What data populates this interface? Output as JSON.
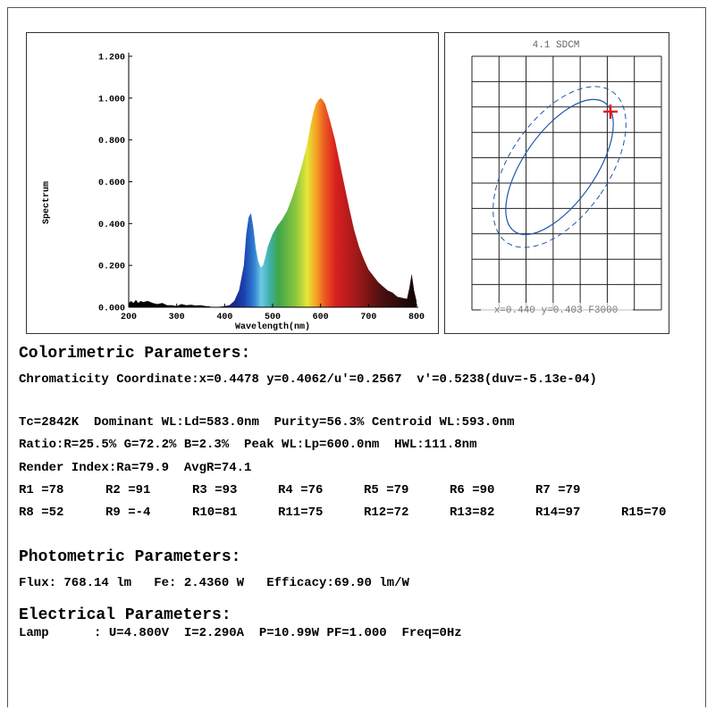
{
  "chart_data": [
    {
      "type": "area",
      "title": "",
      "xlabel": "Wavelength(nm)",
      "ylabel": "Spectrum",
      "xlim": [
        200,
        800
      ],
      "ylim": [
        0,
        1.2
      ],
      "x_ticks": [
        "200",
        "300",
        "400",
        "500",
        "600",
        "700",
        "800"
      ],
      "y_ticks": [
        "0.000",
        "0.200",
        "0.400",
        "0.600",
        "0.800",
        "1.000",
        "1.200"
      ],
      "x": [
        380,
        400,
        410,
        420,
        430,
        440,
        445,
        450,
        455,
        460,
        465,
        470,
        475,
        480,
        485,
        490,
        495,
        500,
        510,
        520,
        530,
        540,
        550,
        560,
        570,
        575,
        580,
        585,
        590,
        595,
        600,
        605,
        610,
        615,
        620,
        630,
        640,
        650,
        660,
        670,
        680,
        690,
        700,
        710,
        720,
        730,
        740,
        750,
        760,
        770,
        780,
        785,
        790,
        795,
        800
      ],
      "values": [
        0.0,
        0.005,
        0.01,
        0.03,
        0.08,
        0.2,
        0.35,
        0.43,
        0.45,
        0.38,
        0.28,
        0.22,
        0.19,
        0.2,
        0.24,
        0.29,
        0.32,
        0.35,
        0.39,
        0.42,
        0.46,
        0.52,
        0.59,
        0.67,
        0.76,
        0.82,
        0.88,
        0.93,
        0.97,
        0.99,
        1.0,
        0.99,
        0.97,
        0.93,
        0.89,
        0.8,
        0.69,
        0.58,
        0.47,
        0.37,
        0.29,
        0.23,
        0.18,
        0.15,
        0.12,
        0.1,
        0.08,
        0.07,
        0.05,
        0.045,
        0.04,
        0.09,
        0.16,
        0.08,
        0.03
      ],
      "noise_x": [
        200,
        205,
        210,
        215,
        220,
        225,
        230,
        240,
        250,
        260,
        270,
        280,
        290,
        300,
        310,
        320,
        330,
        340,
        350,
        360,
        370
      ],
      "noise_values": [
        0.02,
        0.03,
        0.02,
        0.035,
        0.02,
        0.03,
        0.025,
        0.03,
        0.02,
        0.015,
        0.02,
        0.01,
        0.01,
        0.005,
        0.015,
        0.01,
        0.012,
        0.008,
        0.01,
        0.005,
        0.004
      ],
      "grid": false
    },
    {
      "type": "scatter",
      "subtitle": "4.1 SDCM",
      "readout": "x=0.440 y=0.403 F3000",
      "grid": true,
      "marker_color": "#e8151b",
      "ellipse_color": "#1f56a8"
    }
  ],
  "colorimetric": {
    "heading": "Colorimetric Parameters:",
    "chromaticity": "Chromaticity Coordinate:x=0.4478 y=0.4062/u'=0.2567  v'=0.5238(duv=-5.13e-04)",
    "line_tc": "Tc=2842K  Dominant WL:Ld=583.0nm  Purity=56.3% Centroid WL:593.0nm",
    "line_ratio": "Ratio:R=25.5% G=72.2% B=2.3%  Peak WL:Lp=600.0nm  HWL:111.8nm",
    "line_render": "Render Index:Ra=79.9  AvgR=74.1",
    "r_row1": [
      "R1 =78",
      "R2 =91",
      "R3 =93",
      "R4 =76",
      "R5 =79",
      "R6 =90",
      "R7 =79"
    ],
    "r_row2": [
      "R8 =52",
      "R9 =-4",
      "R10=81",
      "R11=75",
      "R12=72",
      "R13=82",
      "R14=97",
      "R15=70"
    ]
  },
  "photometric": {
    "heading": "Photometric Parameters:",
    "line": "Flux: 768.14 lm   Fe: 2.4360 W   Efficacy:69.90 lm/W"
  },
  "electrical": {
    "heading": "Electrical Parameters:",
    "line": "Lamp      : U=4.800V  I=2.290A  P=10.99W PF=1.000  Freq=0Hz"
  }
}
